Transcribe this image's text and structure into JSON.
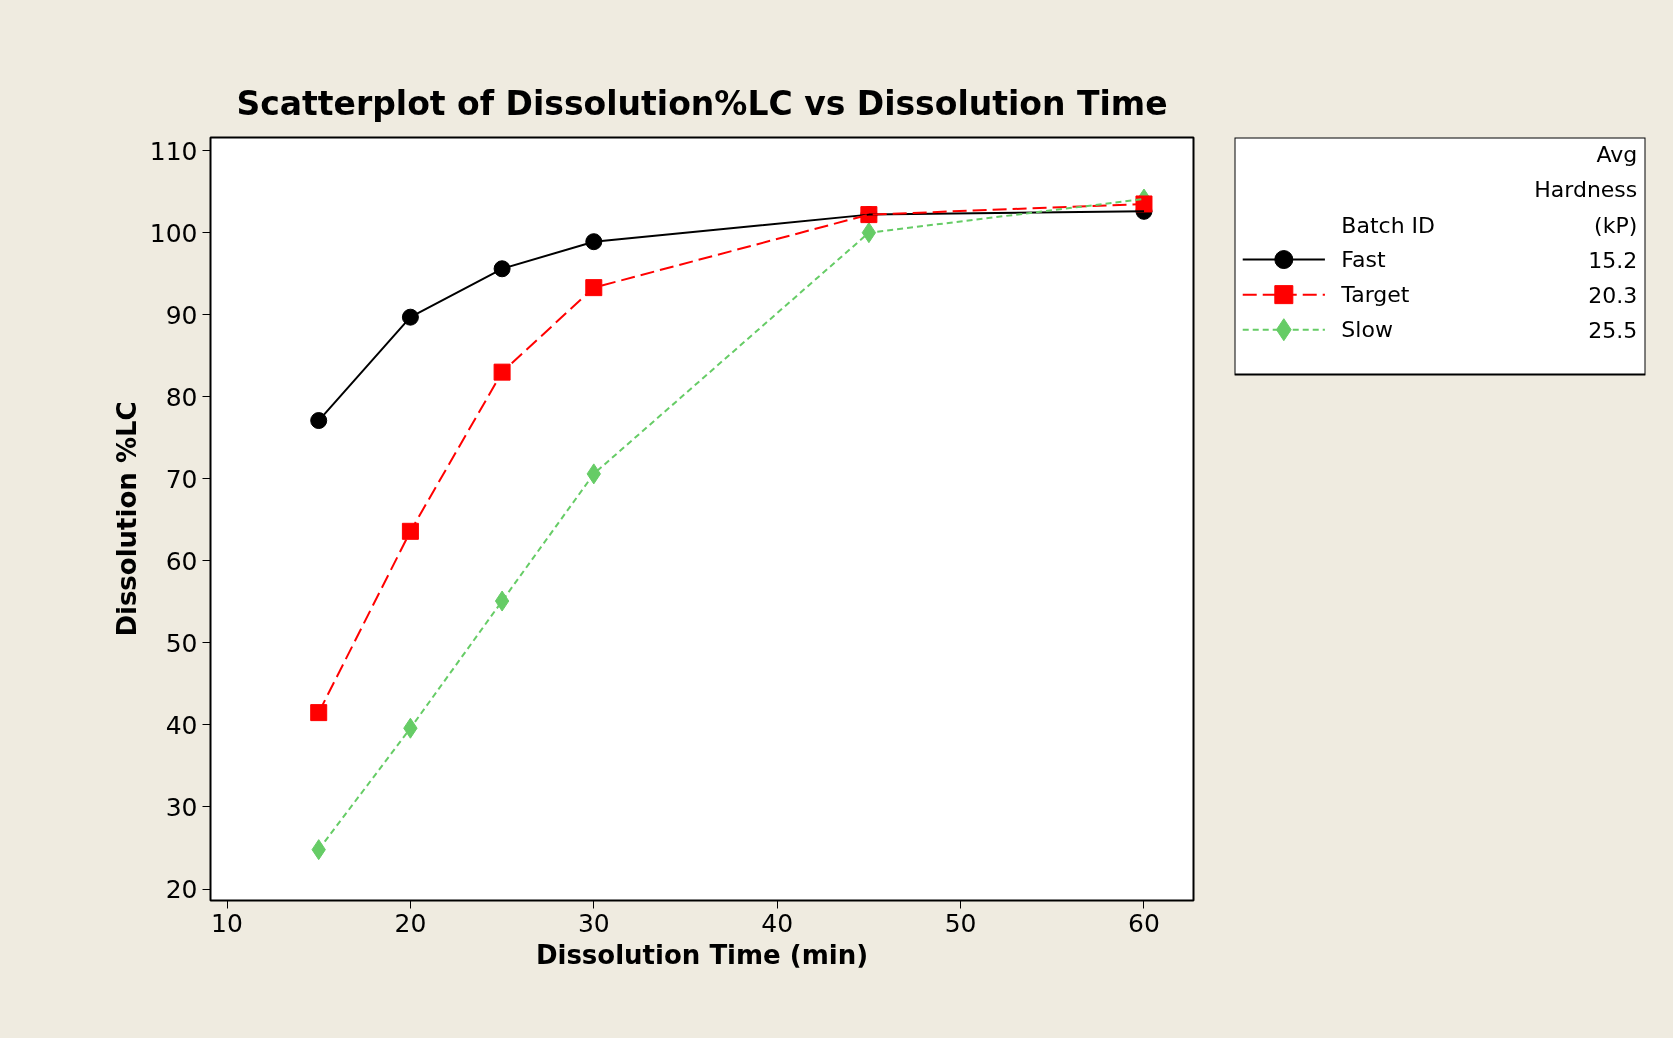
{
  "chart_data": {
    "type": "line",
    "title": "Scatterplot of Dissolution%LC vs Dissolution Time",
    "xlabel": "Dissolution Time (min)",
    "ylabel": "Dissolution %LC",
    "x": [
      15,
      20,
      25,
      30,
      45,
      60
    ],
    "series": [
      {
        "name": "Fast",
        "color": "#000000",
        "marker": "circle",
        "line_style": "solid",
        "values": [
          77.1,
          89.7,
          95.6,
          98.9,
          102.2,
          102.6
        ]
      },
      {
        "name": "Target",
        "color": "#ff0000",
        "marker": "square",
        "line_style": "dashed",
        "values": [
          41.5,
          63.6,
          83.0,
          93.3,
          102.2,
          103.5
        ]
      },
      {
        "name": "Slow",
        "color": "#66cc66",
        "marker": "diamond",
        "line_style": "dotted",
        "values": [
          24.8,
          39.6,
          55.1,
          70.6,
          100.0,
          104.1
        ]
      }
    ],
    "xlim": [
      9.1,
      62.7
    ],
    "ylim": [
      18.6,
      111.6
    ],
    "xticks": [
      10,
      20,
      30,
      40,
      50,
      60
    ],
    "yticks": [
      20,
      30,
      40,
      50,
      60,
      70,
      80,
      90,
      100,
      110
    ],
    "grid": false,
    "legend": "right",
    "legend_title": "Batch ID",
    "annotations": [
      "Avg Hardness (kP)",
      "15.2",
      "20.3",
      "25.5"
    ]
  }
}
